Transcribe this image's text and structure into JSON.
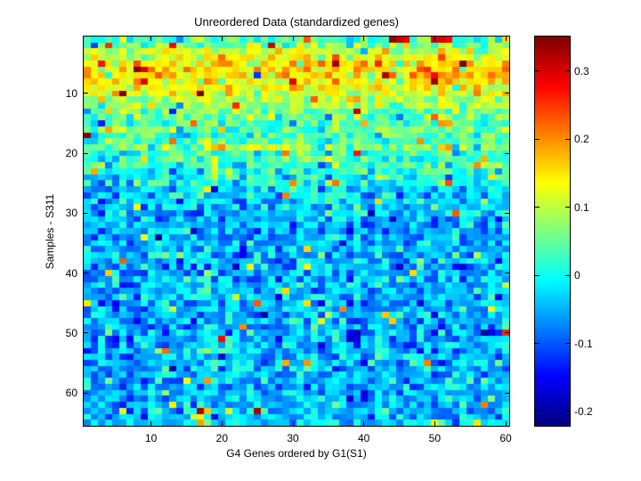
{
  "figure": {
    "background": "#ffffff",
    "axis_color": "#000000"
  },
  "chart_data": {
    "type": "heatmap",
    "title": "Unreordered Data (standardized genes)",
    "xlabel": "G4 Genes ordered by G1(S1)",
    "ylabel": "Samples - S311",
    "n_cols": 60,
    "n_rows": 65,
    "x_ticks": [
      10,
      20,
      30,
      40,
      50,
      60
    ],
    "y_ticks": [
      10,
      20,
      30,
      40,
      50,
      60
    ],
    "colormap": "jet",
    "vmin": -0.221,
    "vmax": 0.351,
    "colorbar": {
      "ticks": [
        0.3,
        0.2,
        0.1,
        0,
        -0.1,
        -0.2
      ],
      "tick_labels": [
        "0.3",
        "0.2",
        "0.1",
        "0",
        "-0.1",
        "-0.2"
      ]
    },
    "legend_position": "right-colorbar",
    "grid": false,
    "row_means": [
      0.035,
      0.06,
      0.1,
      0.13,
      0.15,
      0.16,
      0.15,
      0.14,
      0.13,
      0.12,
      0.105,
      0.085,
      0.055,
      0.04,
      0.035,
      0.045,
      0.025,
      0.035,
      0.07,
      0.015,
      0.03,
      0.025,
      0.015,
      0.005,
      -0.01,
      -0.025,
      -0.035,
      -0.04,
      -0.045,
      -0.04,
      -0.05,
      -0.045,
      -0.05,
      -0.055,
      -0.05,
      -0.055,
      -0.05,
      -0.045,
      -0.055,
      -0.05,
      -0.045,
      -0.04,
      -0.05,
      -0.045,
      -0.055,
      -0.05,
      -0.045,
      -0.05,
      -0.055,
      -0.05,
      -0.045,
      -0.04,
      -0.045,
      -0.05,
      -0.045,
      -0.05,
      -0.055,
      -0.045,
      -0.05,
      -0.045,
      -0.04,
      -0.05,
      -0.045,
      -0.04,
      -0.025
    ],
    "noise_sd": 0.042,
    "col_effect_sd": 0.012,
    "spike_prob": 0.018,
    "spike_min": 0.1,
    "spike_max": 0.26,
    "dip_prob": 0.04,
    "dip_min": 0.05,
    "dip_max": 0.1,
    "seed": 7,
    "outlier_cells_rcv": [
      [
        1,
        44,
        0.34
      ],
      [
        1,
        45,
        0.31
      ],
      [
        1,
        46,
        0.29
      ],
      [
        1,
        50,
        0.3
      ],
      [
        1,
        51,
        0.3
      ],
      [
        1,
        52,
        0.28
      ],
      [
        2,
        13,
        0.28
      ],
      [
        5,
        3,
        0.27
      ],
      [
        6,
        9,
        0.3
      ],
      [
        7,
        25,
        -0.12
      ],
      [
        17,
        1,
        0.35
      ],
      [
        18,
        48,
        0.2
      ],
      [
        20,
        39,
        0.27
      ],
      [
        21,
        19,
        0.13
      ],
      [
        22,
        19,
        0.12
      ],
      [
        23,
        19,
        0.11
      ],
      [
        24,
        19,
        0.1
      ],
      [
        21,
        57,
        0.18
      ],
      [
        22,
        56,
        0.2
      ],
      [
        46,
        58,
        0.14
      ],
      [
        50,
        60,
        0.26
      ],
      [
        53,
        12,
        0.22
      ],
      [
        62,
        57,
        0.21
      ],
      [
        63,
        17,
        0.33
      ],
      [
        63,
        25,
        0.33
      ],
      [
        65,
        17,
        0.19
      ],
      [
        65,
        56,
        0.15
      ]
    ]
  }
}
